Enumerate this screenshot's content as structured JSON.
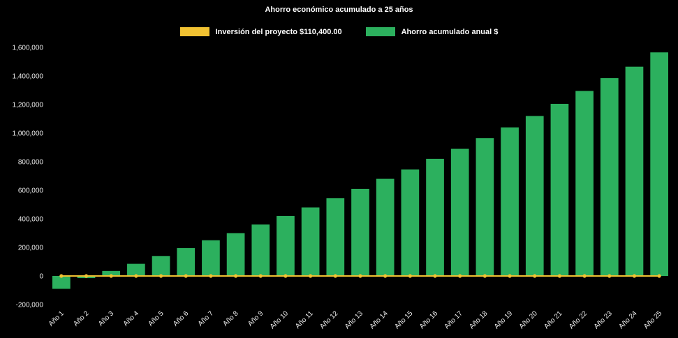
{
  "theme": {
    "background": "#000000",
    "title_color": "#ffffff",
    "legend_text_color": "#ffffff",
    "axis_text_color": "#ededed"
  },
  "chart_data": {
    "type": "bar",
    "title": "Ahorro económico acumulado a 25 años",
    "xlabel": "",
    "ylabel": "",
    "grid": false,
    "legend_position": "top",
    "categories": [
      "Año 1",
      "Año 2",
      "Año 3",
      "Año 4",
      "Año 5",
      "Año 6",
      "Año 7",
      "Año 8",
      "Año 9",
      "Año 10",
      "Año 11",
      "Año 12",
      "Año 13",
      "Año 14",
      "Año 15",
      "Año 16",
      "Año 17",
      "Año 18",
      "Año 19",
      "Año 20",
      "Año 21",
      "Año 22",
      "Año 23",
      "Año 24",
      "Año 25"
    ],
    "series": [
      {
        "name": "Inversión del proyecto $110,400.00",
        "type": "line",
        "color": "#f1c232",
        "values": [
          0,
          0,
          0,
          0,
          0,
          0,
          0,
          0,
          0,
          0,
          0,
          0,
          0,
          0,
          0,
          0,
          0,
          0,
          0,
          0,
          0,
          0,
          0,
          0,
          0
        ]
      },
      {
        "name": "Ahorro acumulado anual $",
        "type": "bar",
        "color": "#2cb05e",
        "values": [
          -90000,
          -15000,
          35000,
          85000,
          140000,
          195000,
          250000,
          300000,
          360000,
          420000,
          480000,
          545000,
          610000,
          680000,
          745000,
          820000,
          890000,
          965000,
          1040000,
          1120000,
          1205000,
          1295000,
          1385000,
          1465000,
          1565000
        ]
      }
    ],
    "ylim": [
      -200000,
      1600000
    ],
    "y_tick_step": 200000,
    "y_tick_values": [
      1600000,
      1400000,
      1200000,
      1000000,
      800000,
      600000,
      400000,
      200000,
      0,
      -200000
    ],
    "y_tick_labels": [
      "1,600,000",
      "1,400,000",
      "1,200,000",
      "1,000,000",
      "800,000",
      "600,000",
      "400,000",
      "200,000",
      "0",
      "-200,000"
    ]
  }
}
